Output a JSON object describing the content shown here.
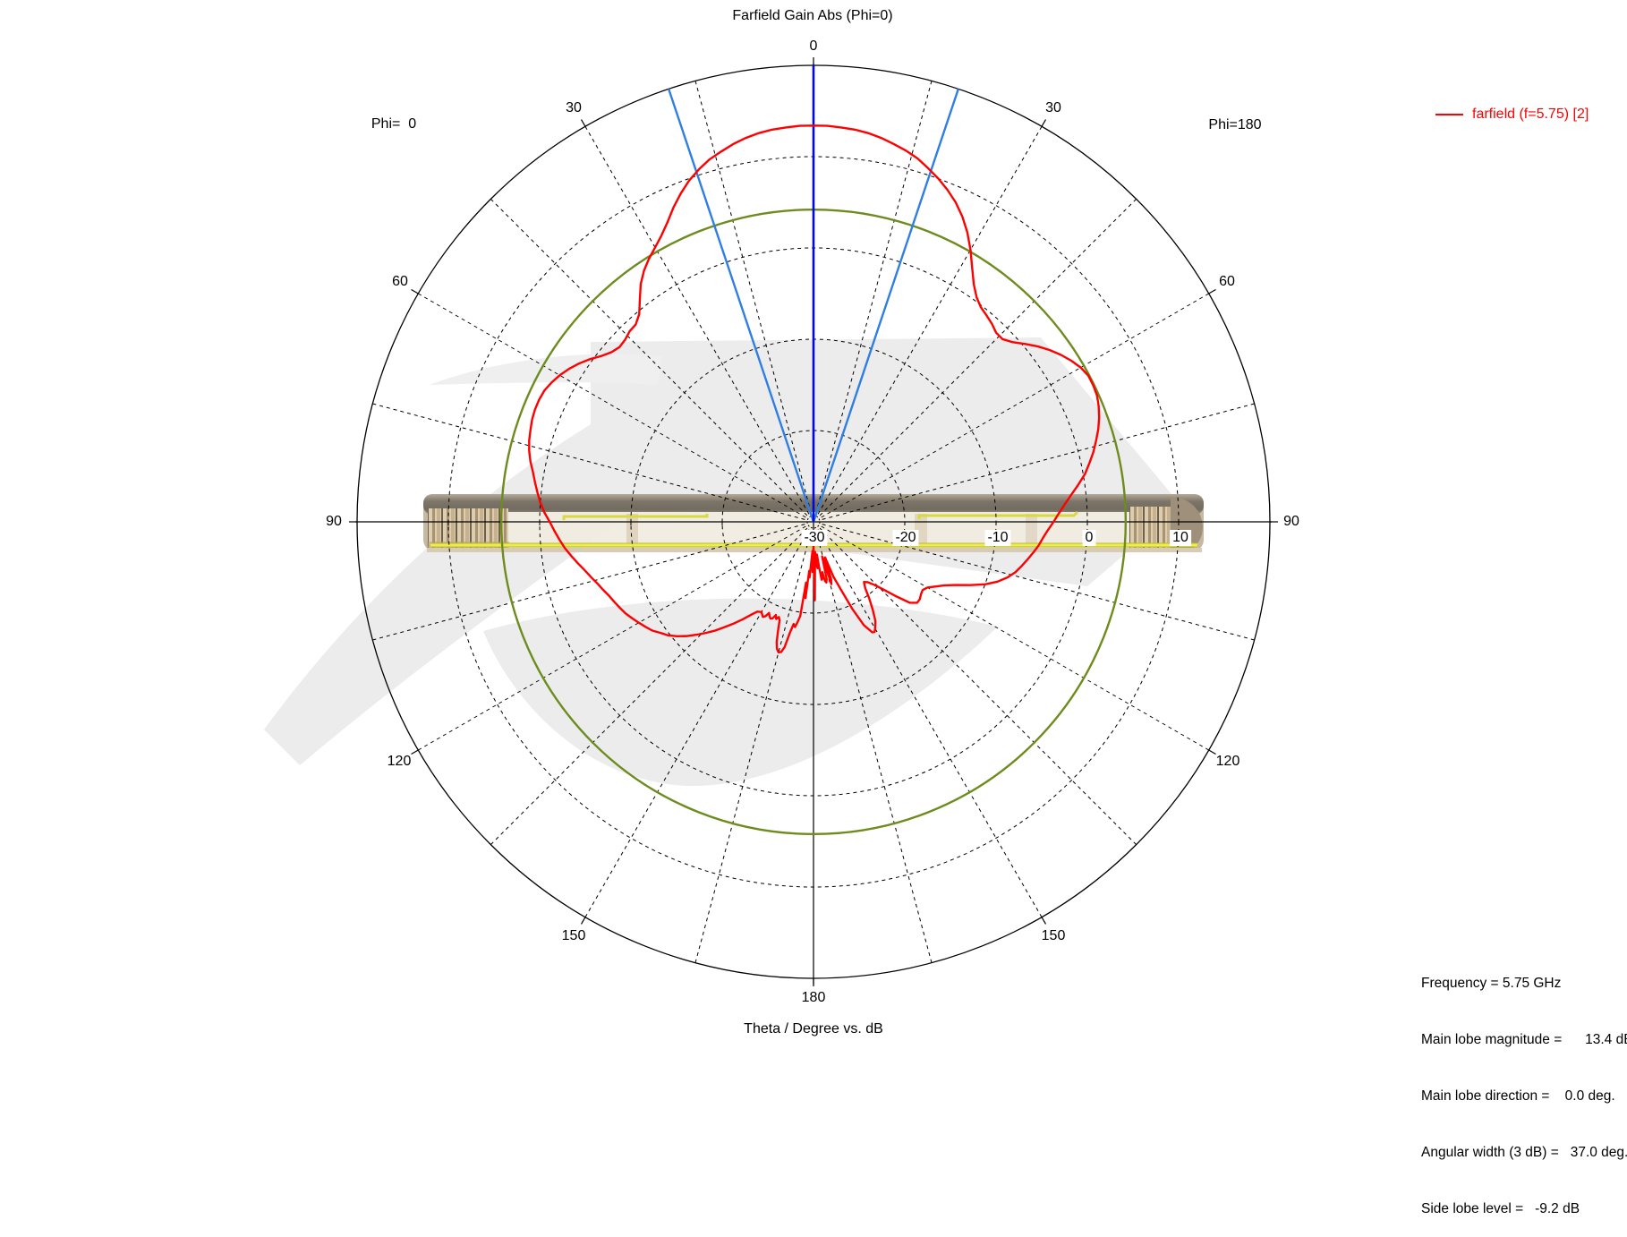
{
  "title": "Farfield Gain Abs (Phi=0)",
  "footer": "Theta / Degree vs. dB",
  "phi_left": "Phi=  0",
  "phi_right": "Phi=180",
  "legend": {
    "label": "farfield (f=5.75) [2]",
    "color": "#ff0000"
  },
  "stats": {
    "line1": "Frequency = 5.75 GHz",
    "line2": "Main lobe magnitude =      13.4 dB",
    "line3": "Main lobe direction =    0.0 deg.",
    "line4": "Angular width (3 dB) =   37.0 deg.",
    "line5": "Side lobe level =   -9.2 dB"
  },
  "colors": {
    "curve": "#ff0000",
    "side_lobe_circle": "#6e8b1e",
    "main_lobe_direction_line": "#0008dd",
    "angular_width_lines": "#2f7fe3",
    "grid": "#000000",
    "watermark": "#ececec"
  },
  "chart_data": {
    "type": "polar-line",
    "title": "Farfield Gain Abs (Phi=0)",
    "caption": "Theta / Degree vs. dB",
    "angular_axis": {
      "unit": "deg",
      "top": "0",
      "bottom": "180",
      "left": [
        "30",
        "60",
        "90",
        "120",
        "150"
      ],
      "right": [
        "30",
        "60",
        "90",
        "120",
        "150"
      ],
      "grid_step_deg": 15,
      "label_step_deg": 30
    },
    "radial_axis": {
      "unit": "dB",
      "min": -30,
      "max": 20,
      "step": 10,
      "tick_labels": [
        "-30",
        "-20",
        "-10",
        "0",
        "10"
      ]
    },
    "annotations": {
      "frequency_ghz": 5.75,
      "main_lobe_magnitude_db": 13.4,
      "main_lobe_direction_deg": 0.0,
      "angular_width_3db_deg": 37.0,
      "side_lobe_level_db": -9.2,
      "side_lobe_circle_db": 4.2
    },
    "series": [
      {
        "name": "farfield (f=5.75) [2]",
        "color": "#ff0000",
        "points_theta_db": [
          [
            -180,
            -27.5
          ],
          [
            -179,
            -24.5
          ],
          [
            -178,
            -26.8
          ],
          [
            -177,
            -25.9
          ],
          [
            -176,
            -23.9
          ],
          [
            -175,
            -24.6
          ],
          [
            -174,
            -21.6
          ],
          [
            -173,
            -23.3
          ],
          [
            -172,
            -19.6
          ],
          [
            -171,
            -18.9
          ],
          [
            -170,
            -18.3
          ],
          [
            -169,
            -18.6
          ],
          [
            -168,
            -17.6
          ],
          [
            -167,
            -15.9
          ],
          [
            -166,
            -15.3
          ],
          [
            -165,
            -15.2
          ],
          [
            -164,
            -15.5
          ],
          [
            -163,
            -16.2
          ],
          [
            -162,
            -17.4
          ],
          [
            -161,
            -18.6
          ],
          [
            -160,
            -18.9
          ],
          [
            -159,
            -18.6
          ],
          [
            -158,
            -19.0
          ],
          [
            -157,
            -18.5
          ],
          [
            -156,
            -18.4
          ],
          [
            -155,
            -18.6
          ],
          [
            -154,
            -18.9
          ],
          [
            -153,
            -18.4
          ],
          [
            -152,
            -18.2
          ],
          [
            -151,
            -18.4
          ],
          [
            -150,
            -18.6
          ],
          [
            -148,
            -18.4
          ],
          [
            -146,
            -17.7
          ],
          [
            -144,
            -16.8
          ],
          [
            -142,
            -15.9
          ],
          [
            -140,
            -15.0
          ],
          [
            -138,
            -14.0
          ],
          [
            -136,
            -13.1
          ],
          [
            -134,
            -12.2
          ],
          [
            -132,
            -11.3
          ],
          [
            -130,
            -10.5
          ],
          [
            -128,
            -9.8
          ],
          [
            -126,
            -9.3
          ],
          [
            -124,
            -8.7
          ],
          [
            -122,
            -8.3
          ],
          [
            -120,
            -7.9
          ],
          [
            -118,
            -7.5
          ],
          [
            -116,
            -7.1
          ],
          [
            -114,
            -6.8
          ],
          [
            -112,
            -6.5
          ],
          [
            -110,
            -6.2
          ],
          [
            -108,
            -5.8
          ],
          [
            -106,
            -5.4
          ],
          [
            -104,
            -4.9
          ],
          [
            -102,
            -4.4
          ],
          [
            -100,
            -3.8
          ],
          [
            -98,
            -3.2
          ],
          [
            -96,
            -2.6
          ],
          [
            -94,
            -2.1
          ],
          [
            -92,
            -1.6
          ],
          [
            -90,
            -1.1
          ],
          [
            -88,
            -0.5
          ],
          [
            -86,
            0.0
          ],
          [
            -84,
            0.4
          ],
          [
            -82,
            0.8
          ],
          [
            -80,
            1.2
          ],
          [
            -78,
            1.7
          ],
          [
            -76,
            2.1
          ],
          [
            -74,
            2.4
          ],
          [
            -72,
            2.6
          ],
          [
            -70,
            2.8
          ],
          [
            -68,
            2.9
          ],
          [
            -66,
            2.9
          ],
          [
            -64,
            2.8
          ],
          [
            -62,
            2.5
          ],
          [
            -60,
            2.1
          ],
          [
            -58,
            1.6
          ],
          [
            -56,
            1.0
          ],
          [
            -54,
            0.3
          ],
          [
            -52,
            -0.5
          ],
          [
            -50,
            -1.1
          ],
          [
            -48,
            -1.4
          ],
          [
            -46,
            -1.3
          ],
          [
            -44,
            -1.0
          ],
          [
            -42,
            -0.9
          ],
          [
            -40,
            -0.3
          ],
          [
            -38,
            0.9
          ],
          [
            -36,
            2.2
          ],
          [
            -34,
            3.2
          ],
          [
            -32,
            4.0
          ],
          [
            -30,
            4.7
          ],
          [
            -28,
            5.5
          ],
          [
            -26,
            6.5
          ],
          [
            -24,
            7.7
          ],
          [
            -22,
            8.8
          ],
          [
            -20,
            9.8
          ],
          [
            -18,
            10.6
          ],
          [
            -16,
            11.3
          ],
          [
            -14,
            11.8
          ],
          [
            -12,
            12.3
          ],
          [
            -10,
            12.7
          ],
          [
            -8,
            13.0
          ],
          [
            -6,
            13.2
          ],
          [
            -4,
            13.3
          ],
          [
            -2,
            13.4
          ],
          [
            0,
            13.4
          ],
          [
            2,
            13.4
          ],
          [
            4,
            13.3
          ],
          [
            6,
            13.2
          ],
          [
            8,
            13.0
          ],
          [
            10,
            12.7
          ],
          [
            12,
            12.3
          ],
          [
            14,
            11.9
          ],
          [
            16,
            11.4
          ],
          [
            18,
            10.7
          ],
          [
            20,
            10.0
          ],
          [
            22,
            9.2
          ],
          [
            24,
            8.3
          ],
          [
            26,
            7.2
          ],
          [
            28,
            5.9
          ],
          [
            30,
            4.4
          ],
          [
            32,
            2.8
          ],
          [
            34,
            1.4
          ],
          [
            36,
            0.4
          ],
          [
            38,
            -0.2
          ],
          [
            40,
            -0.5
          ],
          [
            42,
            -0.8
          ],
          [
            44,
            -1.2
          ],
          [
            46,
            -1.2
          ],
          [
            48,
            -0.6
          ],
          [
            50,
            0.3
          ],
          [
            52,
            1.2
          ],
          [
            54,
            2.0
          ],
          [
            56,
            2.7
          ],
          [
            58,
            3.3
          ],
          [
            60,
            3.8
          ],
          [
            62,
            4.1
          ],
          [
            64,
            4.1
          ],
          [
            66,
            4.0
          ],
          [
            68,
            3.7
          ],
          [
            70,
            3.3
          ],
          [
            72,
            2.8
          ],
          [
            74,
            2.2
          ],
          [
            76,
            1.6
          ],
          [
            78,
            0.9
          ],
          [
            80,
            0.2
          ],
          [
            82,
            -0.7
          ],
          [
            84,
            -1.6
          ],
          [
            86,
            -2.4
          ],
          [
            88,
            -3.1
          ],
          [
            90,
            -3.7
          ],
          [
            92,
            -4.3
          ],
          [
            94,
            -4.8
          ],
          [
            96,
            -5.2
          ],
          [
            98,
            -5.7
          ],
          [
            100,
            -6.2
          ],
          [
            102,
            -6.7
          ],
          [
            104,
            -7.2
          ],
          [
            106,
            -7.9
          ],
          [
            108,
            -8.8
          ],
          [
            110,
            -10.0
          ],
          [
            112,
            -11.5
          ],
          [
            114,
            -13.0
          ],
          [
            116,
            -14.1
          ],
          [
            118,
            -14.9
          ],
          [
            120,
            -15.6
          ],
          [
            122,
            -15.9
          ],
          [
            124,
            -15.8
          ],
          [
            126,
            -15.6
          ],
          [
            128,
            -15.6
          ],
          [
            130,
            -16.2
          ],
          [
            132,
            -17.8
          ],
          [
            134,
            -19.3
          ],
          [
            136,
            -20.4
          ],
          [
            138,
            -21.1
          ],
          [
            140,
            -21.4
          ],
          [
            142,
            -20.8
          ],
          [
            144,
            -19.6
          ],
          [
            146,
            -18.4
          ],
          [
            148,
            -17.2
          ],
          [
            150,
            -16.5
          ],
          [
            151,
            -16.2
          ],
          [
            152,
            -16.3
          ],
          [
            154,
            -17.4
          ],
          [
            156,
            -19.6
          ],
          [
            158,
            -22.0
          ],
          [
            160,
            -23.6
          ],
          [
            161,
            -25.0
          ],
          [
            162,
            -25.9
          ],
          [
            163,
            -23.4
          ],
          [
            164,
            -22.9
          ],
          [
            165,
            -25.6
          ],
          [
            166,
            -26.1
          ],
          [
            167,
            -23.6
          ],
          [
            168,
            -23.2
          ],
          [
            169,
            -23.4
          ],
          [
            170,
            -24.4
          ],
          [
            171,
            -23.7
          ],
          [
            172,
            -23.6
          ],
          [
            173,
            -25.1
          ],
          [
            174,
            -26.4
          ],
          [
            175,
            -24.9
          ],
          [
            176,
            -25.3
          ],
          [
            177,
            -26.7
          ],
          [
            178,
            -25.4
          ],
          [
            179,
            -21.4
          ],
          [
            180,
            -27.5
          ]
        ]
      }
    ]
  }
}
